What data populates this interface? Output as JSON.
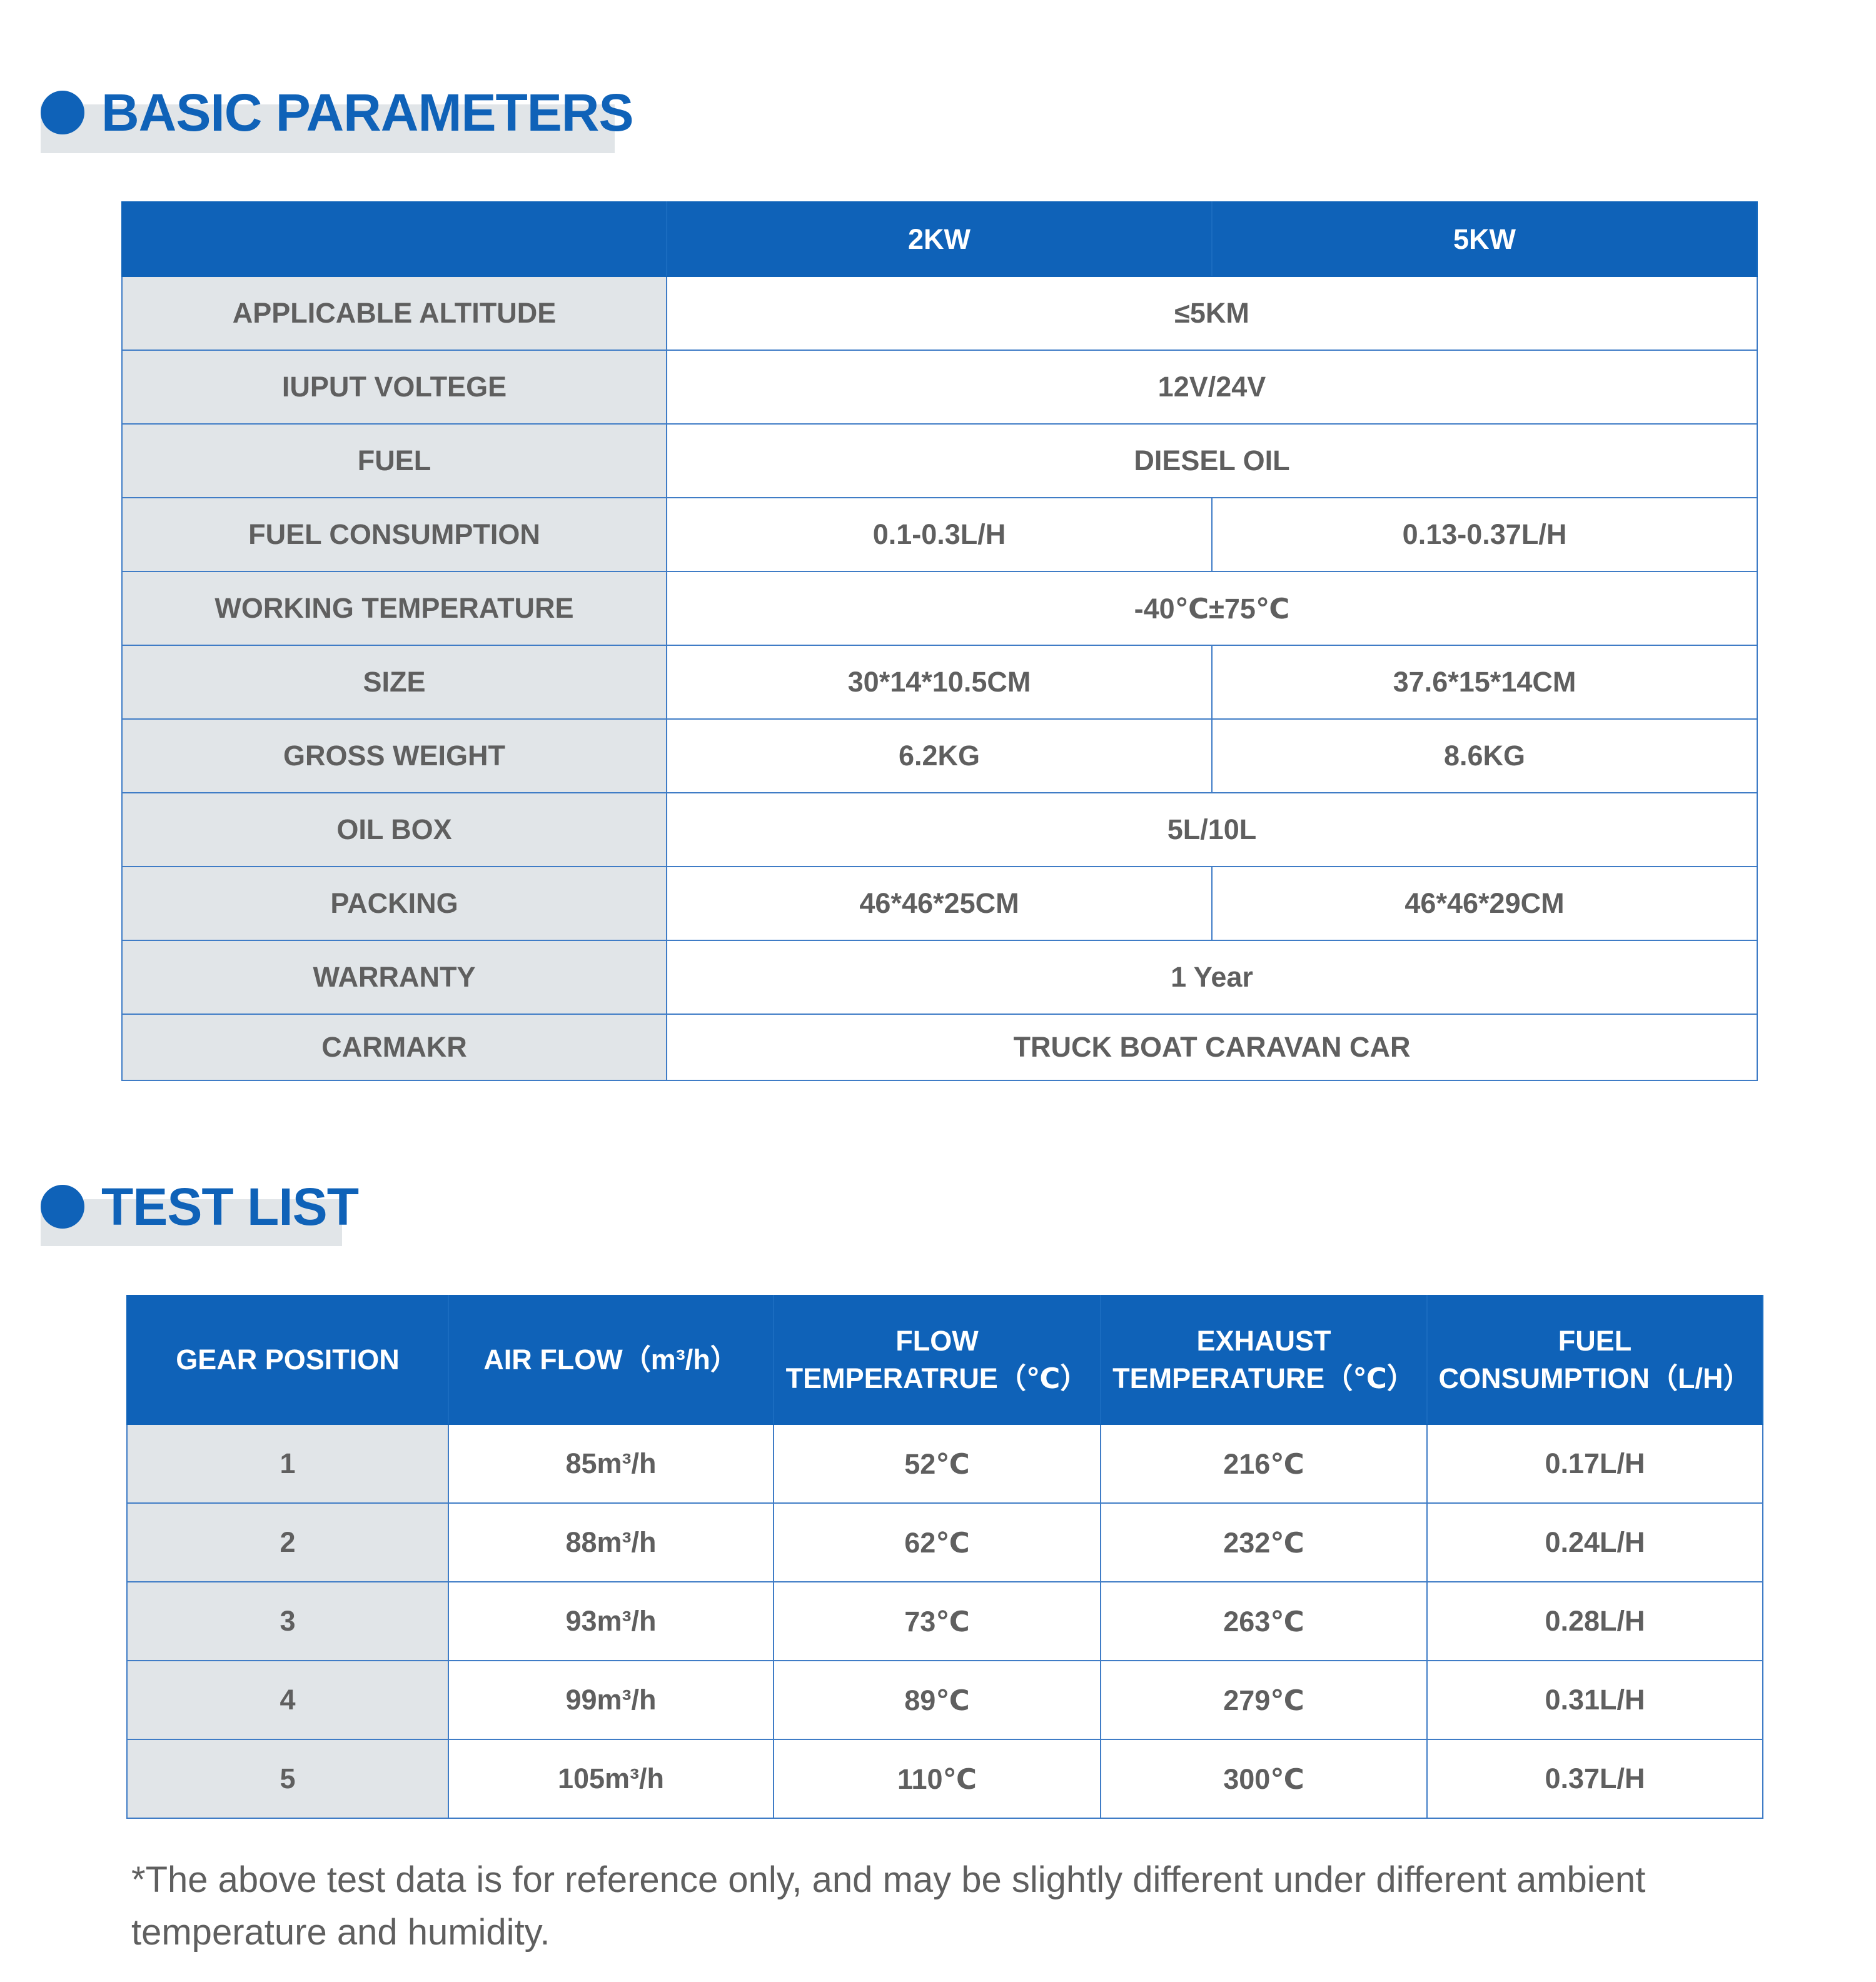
{
  "colors": {
    "accent": "#0f62b8",
    "label_bg": "#e1e5e8",
    "text": "#5f5f5f"
  },
  "basic": {
    "title": "BASIC PARAMETERS",
    "headers": [
      "",
      "2KW",
      "5KW"
    ],
    "rows": [
      {
        "label": "APPLICABLE ALTITUDE",
        "values": [
          "≤5KM"
        ]
      },
      {
        "label": "IUPUT VOLTEGE",
        "values": [
          "12V/24V"
        ]
      },
      {
        "label": "FUEL",
        "values": [
          "DIESEL OIL"
        ]
      },
      {
        "label": "FUEL CONSUMPTION",
        "values": [
          "0.1-0.3L/H",
          "0.13-0.37L/H"
        ]
      },
      {
        "label": "WORKING TEMPERATURE",
        "values": [
          "-40℃±75℃"
        ]
      },
      {
        "label": "SIZE",
        "values": [
          "30*14*10.5CM",
          "37.6*15*14CM"
        ]
      },
      {
        "label": "GROSS WEIGHT",
        "values": [
          "6.2KG",
          "8.6KG"
        ]
      },
      {
        "label": "OIL BOX",
        "values": [
          "5L/10L"
        ]
      },
      {
        "label": "PACKING",
        "values": [
          "46*46*25CM",
          "46*46*29CM"
        ]
      },
      {
        "label": "WARRANTY",
        "values": [
          "1 Year"
        ]
      },
      {
        "label": "CARMAKR",
        "values": [
          "TRUCK BOAT CARAVAN CAR"
        ]
      }
    ]
  },
  "test": {
    "title": "TEST LIST",
    "headers": [
      [
        "GEAR POSITION"
      ],
      [
        "AIR FLOW（m³/h）"
      ],
      [
        "FLOW",
        "TEMPERATRUE（℃）"
      ],
      [
        "EXHAUST",
        "TEMPERATURE（℃）"
      ],
      [
        "FUEL",
        "CONSUMPTION（L/H）"
      ]
    ],
    "rows": [
      [
        "1",
        "85m³/h",
        "52℃",
        "216℃",
        "0.17L/H"
      ],
      [
        "2",
        "88m³/h",
        "62℃",
        "232℃",
        "0.24L/H"
      ],
      [
        "3",
        "93m³/h",
        "73℃",
        "263℃",
        "0.28L/H"
      ],
      [
        "4",
        "99m³/h",
        "89℃",
        "279℃",
        "0.31L/H"
      ],
      [
        "5",
        "105m³/h",
        "110℃",
        "300℃",
        "0.37L/H"
      ]
    ],
    "note": "*The above test data is for reference only, and may be slightly different under different ambient temperature and humidity."
  }
}
